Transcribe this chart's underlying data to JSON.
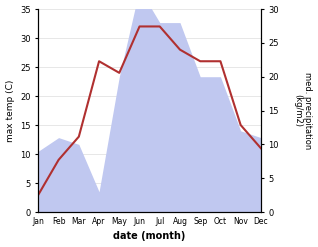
{
  "months": [
    "Jan",
    "Feb",
    "Mar",
    "Apr",
    "May",
    "Jun",
    "Jul",
    "Aug",
    "Sep",
    "Oct",
    "Nov",
    "Dec"
  ],
  "x": [
    1,
    2,
    3,
    4,
    5,
    6,
    7,
    8,
    9,
    10,
    11,
    12
  ],
  "temp": [
    3,
    9,
    13,
    26,
    24,
    32,
    32,
    28,
    26,
    26,
    15,
    11
  ],
  "precip": [
    9,
    11,
    10,
    3,
    20,
    33,
    28,
    28,
    20,
    20,
    12,
    11
  ],
  "temp_color": "#b03030",
  "precip_color_fill": "#c0c8f0",
  "bg_color": "#ffffff",
  "xlabel": "date (month)",
  "ylabel_left": "max temp (C)",
  "ylabel_right": "med. precipitation\n(kg/m2)",
  "ylim_left": [
    0,
    35
  ],
  "ylim_right": [
    0,
    30
  ],
  "yticks_left": [
    0,
    5,
    10,
    15,
    20,
    25,
    30,
    35
  ],
  "yticks_right": [
    0,
    5,
    10,
    15,
    20,
    25,
    30
  ],
  "figsize": [
    3.18,
    2.47
  ],
  "dpi": 100
}
